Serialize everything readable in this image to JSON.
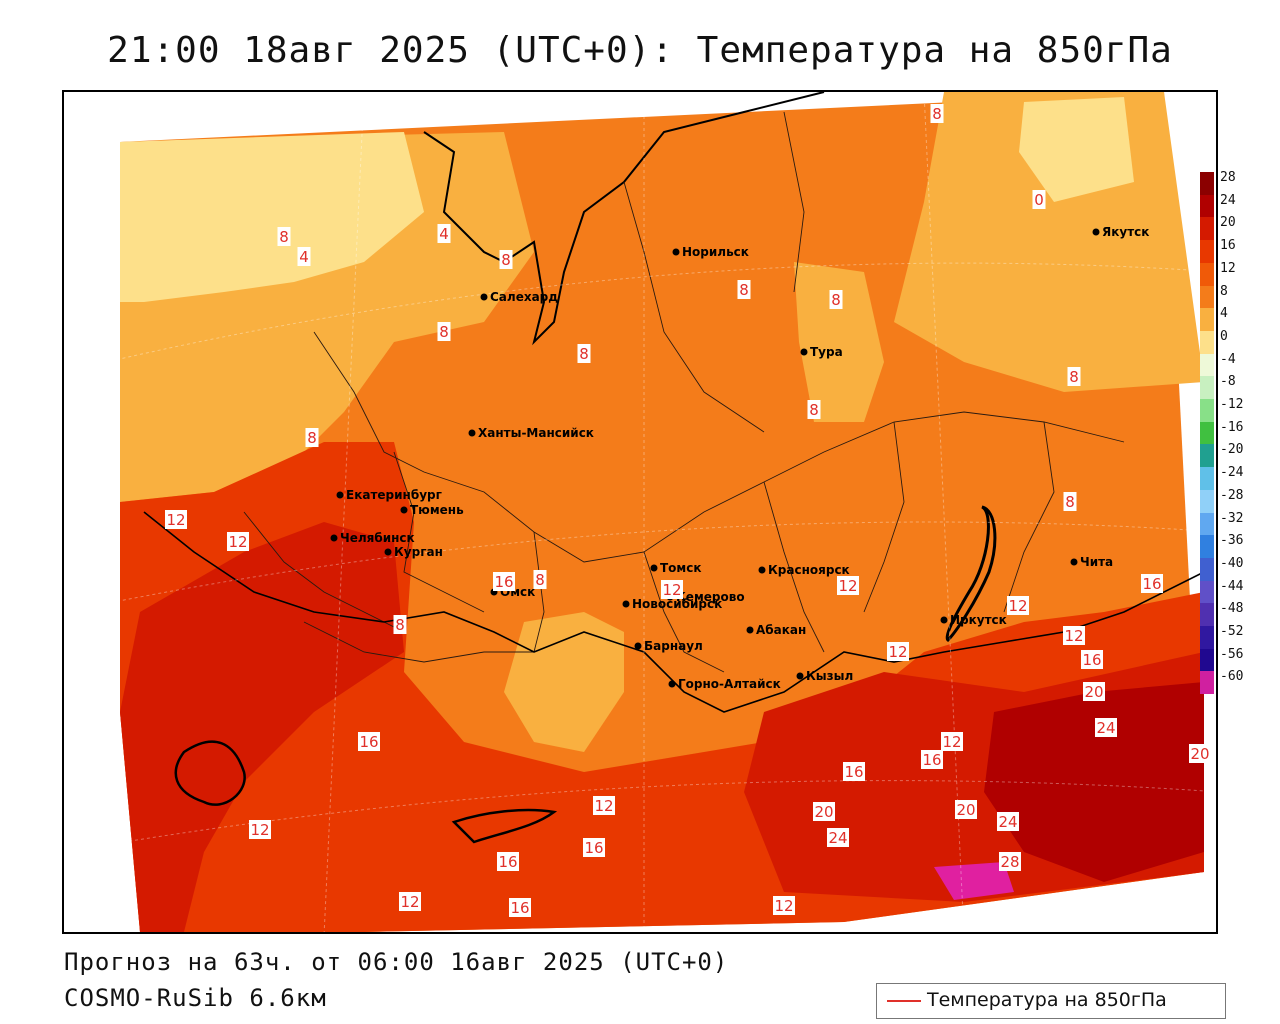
{
  "header": {
    "title": "21:00 18авг 2025 (UTC+0): Температура на 850гПа"
  },
  "footer": {
    "forecast_line": "Прогноз на 63ч. от 06:00 16авг 2025 (UTC+0)",
    "model_line": "COSMO-RuSib 6.6км"
  },
  "legend": {
    "item_label": "Температура на 850гПа",
    "line_color": "#e0302a"
  },
  "colorbar": {
    "ticks": [
      "28",
      "24",
      "20",
      "16",
      "12",
      "8",
      "4",
      "0",
      "-4",
      "-8",
      "-12",
      "-16",
      "-20",
      "-24",
      "-28",
      "-32",
      "-36",
      "-40",
      "-44",
      "-48",
      "-52",
      "-56",
      "-60"
    ],
    "colors": [
      "#8b0000",
      "#b00000",
      "#d41a00",
      "#e83800",
      "#f05a08",
      "#f47c1a",
      "#f9b040",
      "#fde08a",
      "#eef9d8",
      "#c8f0c0",
      "#88e088",
      "#40c040",
      "#20a090",
      "#60c0e8",
      "#90d0f8",
      "#60a8f0",
      "#3080e0",
      "#4060d0",
      "#6050c8",
      "#5030b0",
      "#3018a0",
      "#200890",
      "#d020a0"
    ]
  },
  "cities": [
    {
      "name": "Норильск"
    },
    {
      "name": "Якутск"
    },
    {
      "name": "Салехард"
    },
    {
      "name": "Тура"
    },
    {
      "name": "Ханты-Мансийск"
    },
    {
      "name": "Екатеринбург"
    },
    {
      "name": "Тюмень"
    },
    {
      "name": "Челябинск"
    },
    {
      "name": "Курган"
    },
    {
      "name": "Омск"
    },
    {
      "name": "Томск"
    },
    {
      "name": "Новосибирск"
    },
    {
      "name": "Кемерово"
    },
    {
      "name": "Красноярск"
    },
    {
      "name": "Абакан"
    },
    {
      "name": "Барнаул"
    },
    {
      "name": "Иркутск"
    },
    {
      "name": "Чита"
    },
    {
      "name": "Кызыл"
    },
    {
      "name": "Горно-Алтайск"
    }
  ],
  "contour_labels": [
    "8",
    "8",
    "4",
    "0",
    "4",
    "8",
    "8",
    "8",
    "8",
    "8",
    "8",
    "8",
    "8",
    "8",
    "8",
    "8",
    "12",
    "16",
    "12",
    "12",
    "12",
    "12",
    "12",
    "12",
    "16",
    "20",
    "24",
    "20",
    "16",
    "16",
    "12",
    "16",
    "12",
    "12",
    "16",
    "16",
    "20",
    "24",
    "20",
    "24",
    "28",
    "12",
    "16",
    "12",
    "16"
  ]
}
